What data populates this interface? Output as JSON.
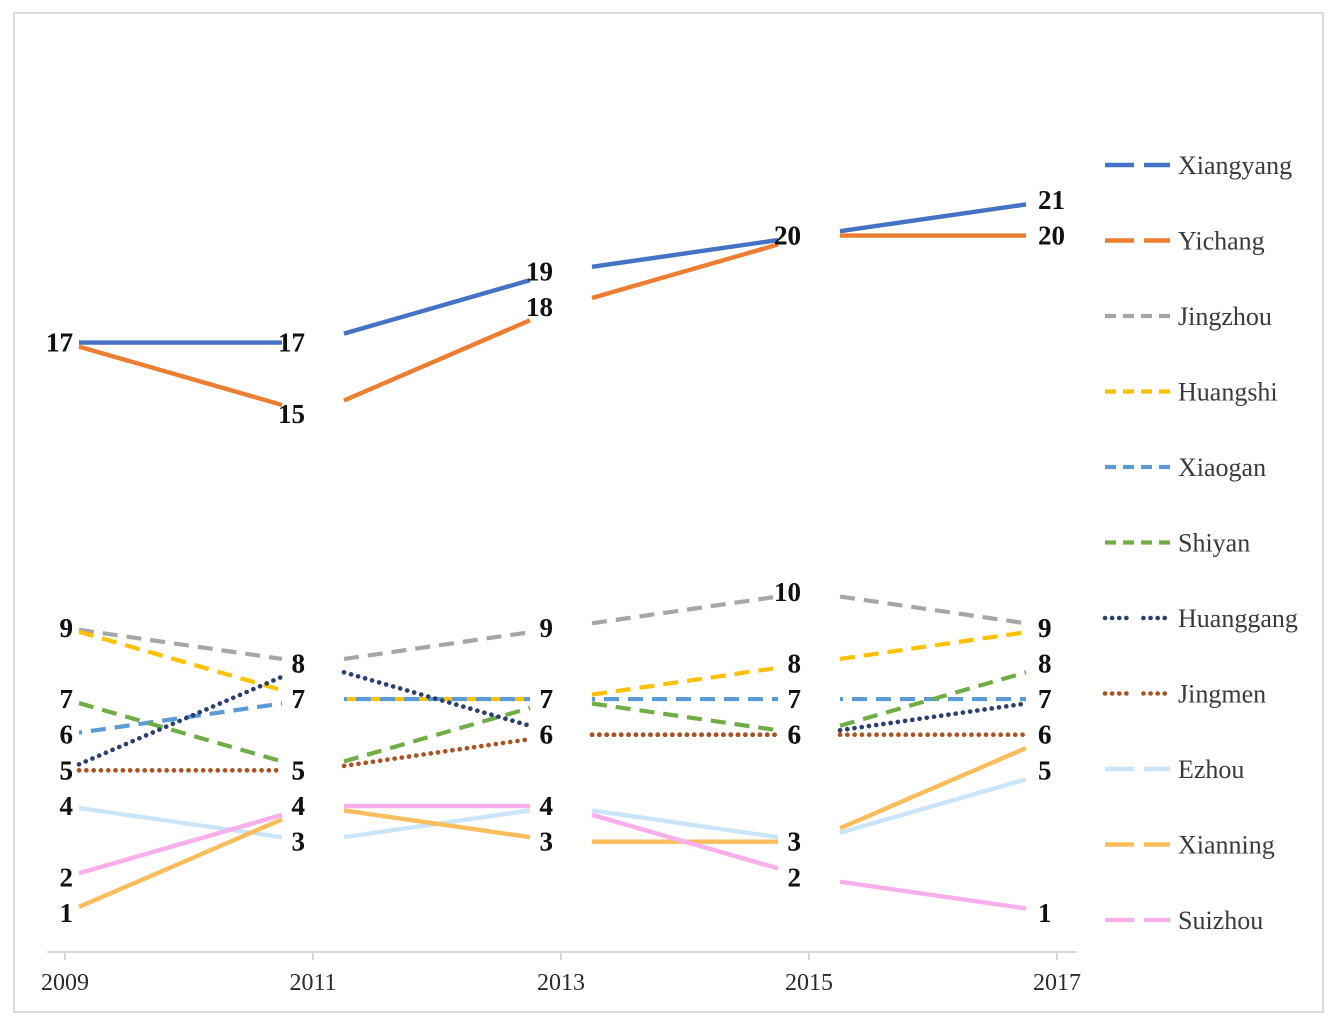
{
  "figure": {
    "background_color": "#ffffff",
    "border_color": "#dcdcdc",
    "axis_line_color": "#d9d9d9"
  },
  "chart_data": {
    "type": "line",
    "title": "",
    "xlabel": "",
    "ylabel": "",
    "x_labels": [
      "2009",
      "2011",
      "2013",
      "2015",
      "2017"
    ],
    "y_axis": {
      "visible": false,
      "min": 0,
      "max": 22
    },
    "grid": false,
    "legend_position": "right",
    "data_labels_visible": true,
    "series": [
      {
        "name": "Xiangyang",
        "color": "#4472C4",
        "line_style": "solid",
        "values": [
          17,
          17,
          19,
          20,
          21
        ]
      },
      {
        "name": "Yichang",
        "color": "#ED7D31",
        "line_style": "solid",
        "values": [
          17,
          15,
          18,
          20,
          20
        ]
      },
      {
        "name": "Jingzhou",
        "color": "#A6A6A6",
        "line_style": "dashed",
        "values": [
          9,
          8,
          9,
          10,
          9
        ]
      },
      {
        "name": "Huangshi",
        "color": "#FFC000",
        "line_style": "dashed",
        "values": [
          9,
          7,
          7,
          8,
          9
        ]
      },
      {
        "name": "Xiaogan",
        "color": "#5B9BD5",
        "line_style": "dashed",
        "values": [
          6,
          7,
          7,
          7,
          7
        ]
      },
      {
        "name": "Shiyan",
        "color": "#70AD47",
        "line_style": "dashed",
        "values": [
          7,
          5,
          7,
          6,
          8
        ]
      },
      {
        "name": "Huanggang",
        "color": "#283F6F",
        "line_style": "dotted",
        "values": [
          5,
          8,
          6,
          6,
          7
        ]
      },
      {
        "name": "Jingmen",
        "color": "#AD5120",
        "line_style": "dotted",
        "values": [
          5,
          5,
          6,
          6,
          6
        ]
      },
      {
        "name": "Ezhou",
        "color": "#CBE5F8",
        "line_style": "solid",
        "values": [
          4,
          3,
          4,
          3,
          5
        ]
      },
      {
        "name": "Xianning",
        "color": "#FBBD5C",
        "line_style": "solid",
        "values": [
          1,
          4,
          3,
          3,
          6
        ]
      },
      {
        "name": "Suizhou",
        "color": "#F8AFEC",
        "line_style": "solid",
        "values": [
          2,
          4,
          4,
          2,
          1
        ]
      }
    ]
  }
}
